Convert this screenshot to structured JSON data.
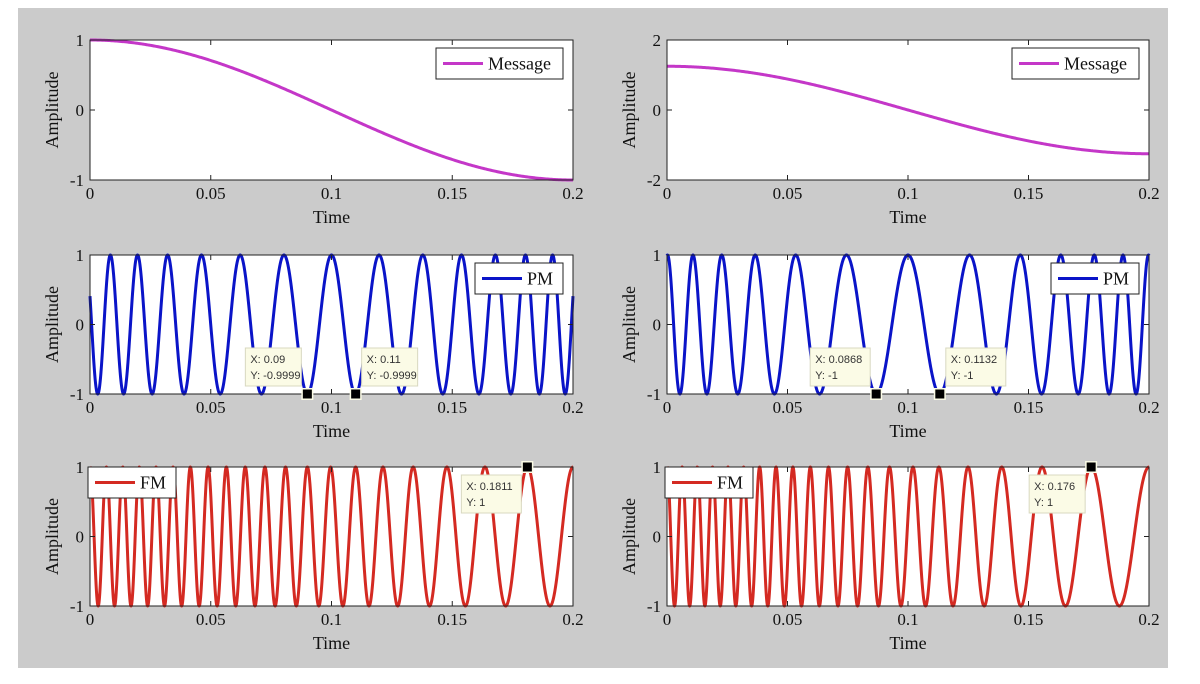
{
  "figure": {
    "background": "#cbcbcb"
  },
  "chart_data": [
    {
      "type": "line",
      "position": "top-left",
      "xlabel": "Time",
      "ylabel": "Amplitude",
      "xlim": [
        0,
        0.2
      ],
      "ylim": [
        -1,
        1
      ],
      "xticks": [
        0,
        0.05,
        0.1,
        0.15,
        0.2
      ],
      "xtick_labels": [
        "0",
        "0.05",
        "0.1",
        "0.15",
        "0.2"
      ],
      "yticks": [
        -1,
        0,
        1
      ],
      "ytick_labels": [
        "-1",
        "0",
        "1"
      ],
      "legend": {
        "label": "Message",
        "location": "top-right"
      },
      "series": {
        "name": "Message",
        "color": "#c437c8",
        "x": [
          0,
          0.01,
          0.02,
          0.03,
          0.04,
          0.05,
          0.06,
          0.07,
          0.08,
          0.09,
          0.1,
          0.11,
          0.12,
          0.13,
          0.14,
          0.15,
          0.16,
          0.17,
          0.18,
          0.19,
          0.2
        ],
        "y": [
          1,
          0.988,
          0.951,
          0.891,
          0.809,
          0.707,
          0.588,
          0.454,
          0.309,
          0.156,
          0,
          -0.156,
          -0.309,
          -0.454,
          -0.588,
          -0.707,
          -0.809,
          -0.891,
          -0.951,
          -0.988,
          -1
        ]
      },
      "datatips": []
    },
    {
      "type": "line",
      "position": "top-right",
      "xlabel": "Time",
      "ylabel": "Amplitude",
      "xlim": [
        0,
        0.2
      ],
      "ylim": [
        -2,
        2
      ],
      "xticks": [
        0,
        0.05,
        0.1,
        0.15,
        0.2
      ],
      "xtick_labels": [
        "0",
        "0.05",
        "0.1",
        "0.15",
        "0.2"
      ],
      "yticks": [
        -2,
        0,
        2
      ],
      "ytick_labels": [
        "-2",
        "0",
        "2"
      ],
      "legend": {
        "label": "Message",
        "location": "top-right"
      },
      "series": {
        "name": "Message",
        "color": "#c437c8",
        "x": [
          0,
          0.01,
          0.02,
          0.03,
          0.04,
          0.05,
          0.06,
          0.07,
          0.08,
          0.09,
          0.1,
          0.11,
          0.12,
          0.13,
          0.14,
          0.15,
          0.16,
          0.17,
          0.18,
          0.19,
          0.2
        ],
        "y": [
          1.25,
          1.235,
          1.189,
          1.114,
          1.011,
          0.884,
          0.735,
          0.567,
          0.386,
          0.196,
          0,
          -0.196,
          -0.386,
          -0.567,
          -0.735,
          -0.884,
          -1.011,
          -1.114,
          -1.189,
          -1.235,
          -1.25
        ]
      },
      "datatips": []
    },
    {
      "type": "line",
      "position": "middle-left",
      "xlabel": "Time",
      "ylabel": "Amplitude",
      "xlim": [
        0,
        0.2
      ],
      "ylim": [
        -1,
        1
      ],
      "xticks": [
        0,
        0.05,
        0.1,
        0.15,
        0.2
      ],
      "xtick_labels": [
        "0",
        "0.05",
        "0.1",
        "0.15",
        "0.2"
      ],
      "yticks": [
        -1,
        0,
        1
      ],
      "ytick_labels": [
        "-1",
        "0",
        "1"
      ],
      "legend": {
        "label": "PM",
        "location": "top-right"
      },
      "series": {
        "name": "PM",
        "color": "#0a14c8"
      },
      "datatips": [
        {
          "x": 0.09,
          "y": -0.9999,
          "x_text": "X: 0.09",
          "y_text": "Y: -0.9999",
          "side": "left"
        },
        {
          "x": 0.11,
          "y": -0.9999,
          "x_text": "X: 0.11",
          "y_text": "Y: -0.9999",
          "side": "right"
        }
      ]
    },
    {
      "type": "line",
      "position": "middle-right",
      "xlabel": "Time",
      "ylabel": "Amplitude",
      "xlim": [
        0,
        0.2
      ],
      "ylim": [
        -1,
        1
      ],
      "xticks": [
        0,
        0.05,
        0.1,
        0.15,
        0.2
      ],
      "xtick_labels": [
        "0",
        "0.05",
        "0.1",
        "0.15",
        "0.2"
      ],
      "yticks": [
        -1,
        0,
        1
      ],
      "ytick_labels": [
        "-1",
        "0",
        "1"
      ],
      "legend": {
        "label": "PM",
        "location": "top-right"
      },
      "series": {
        "name": "PM",
        "color": "#0a14c8"
      },
      "datatips": [
        {
          "x": 0.0868,
          "y": -1,
          "x_text": "X: 0.0868",
          "y_text": "Y: -1",
          "side": "left"
        },
        {
          "x": 0.1132,
          "y": -1,
          "x_text": "X: 0.1132",
          "y_text": "Y: -1",
          "side": "right"
        }
      ]
    },
    {
      "type": "line",
      "position": "bottom-left",
      "xlabel": "Time",
      "ylabel": "Amplitude",
      "xlim": [
        0,
        0.2
      ],
      "ylim": [
        -1,
        1
      ],
      "xticks": [
        0,
        0.05,
        0.1,
        0.15,
        0.2
      ],
      "xtick_labels": [
        "0",
        "0.05",
        "0.1",
        "0.15",
        "0.2"
      ],
      "yticks": [
        -1,
        0,
        1
      ],
      "ytick_labels": [
        "-1",
        "0",
        "1"
      ],
      "legend": {
        "label": "FM",
        "location": "top-left"
      },
      "series": {
        "name": "FM",
        "color": "#d42a22"
      },
      "datatips": [
        {
          "x": 0.1811,
          "y": 1,
          "x_text": "X: 0.1811",
          "y_text": "Y: 1",
          "side": "below-left"
        }
      ]
    },
    {
      "type": "line",
      "position": "bottom-right",
      "xlabel": "Time",
      "ylabel": "Amplitude",
      "xlim": [
        0,
        0.2
      ],
      "ylim": [
        -1,
        1
      ],
      "xticks": [
        0,
        0.05,
        0.1,
        0.15,
        0.2
      ],
      "xtick_labels": [
        "0",
        "0.05",
        "0.1",
        "0.15",
        "0.2"
      ],
      "yticks": [
        -1,
        0,
        1
      ],
      "ytick_labels": [
        "-1",
        "0",
        "1"
      ],
      "legend": {
        "label": "FM",
        "location": "top-left"
      },
      "series": {
        "name": "FM",
        "color": "#d42a22"
      },
      "datatips": [
        {
          "x": 0.176,
          "y": 1,
          "x_text": "X: 0.176",
          "y_text": "Y: 1",
          "side": "below-left"
        }
      ]
    }
  ]
}
